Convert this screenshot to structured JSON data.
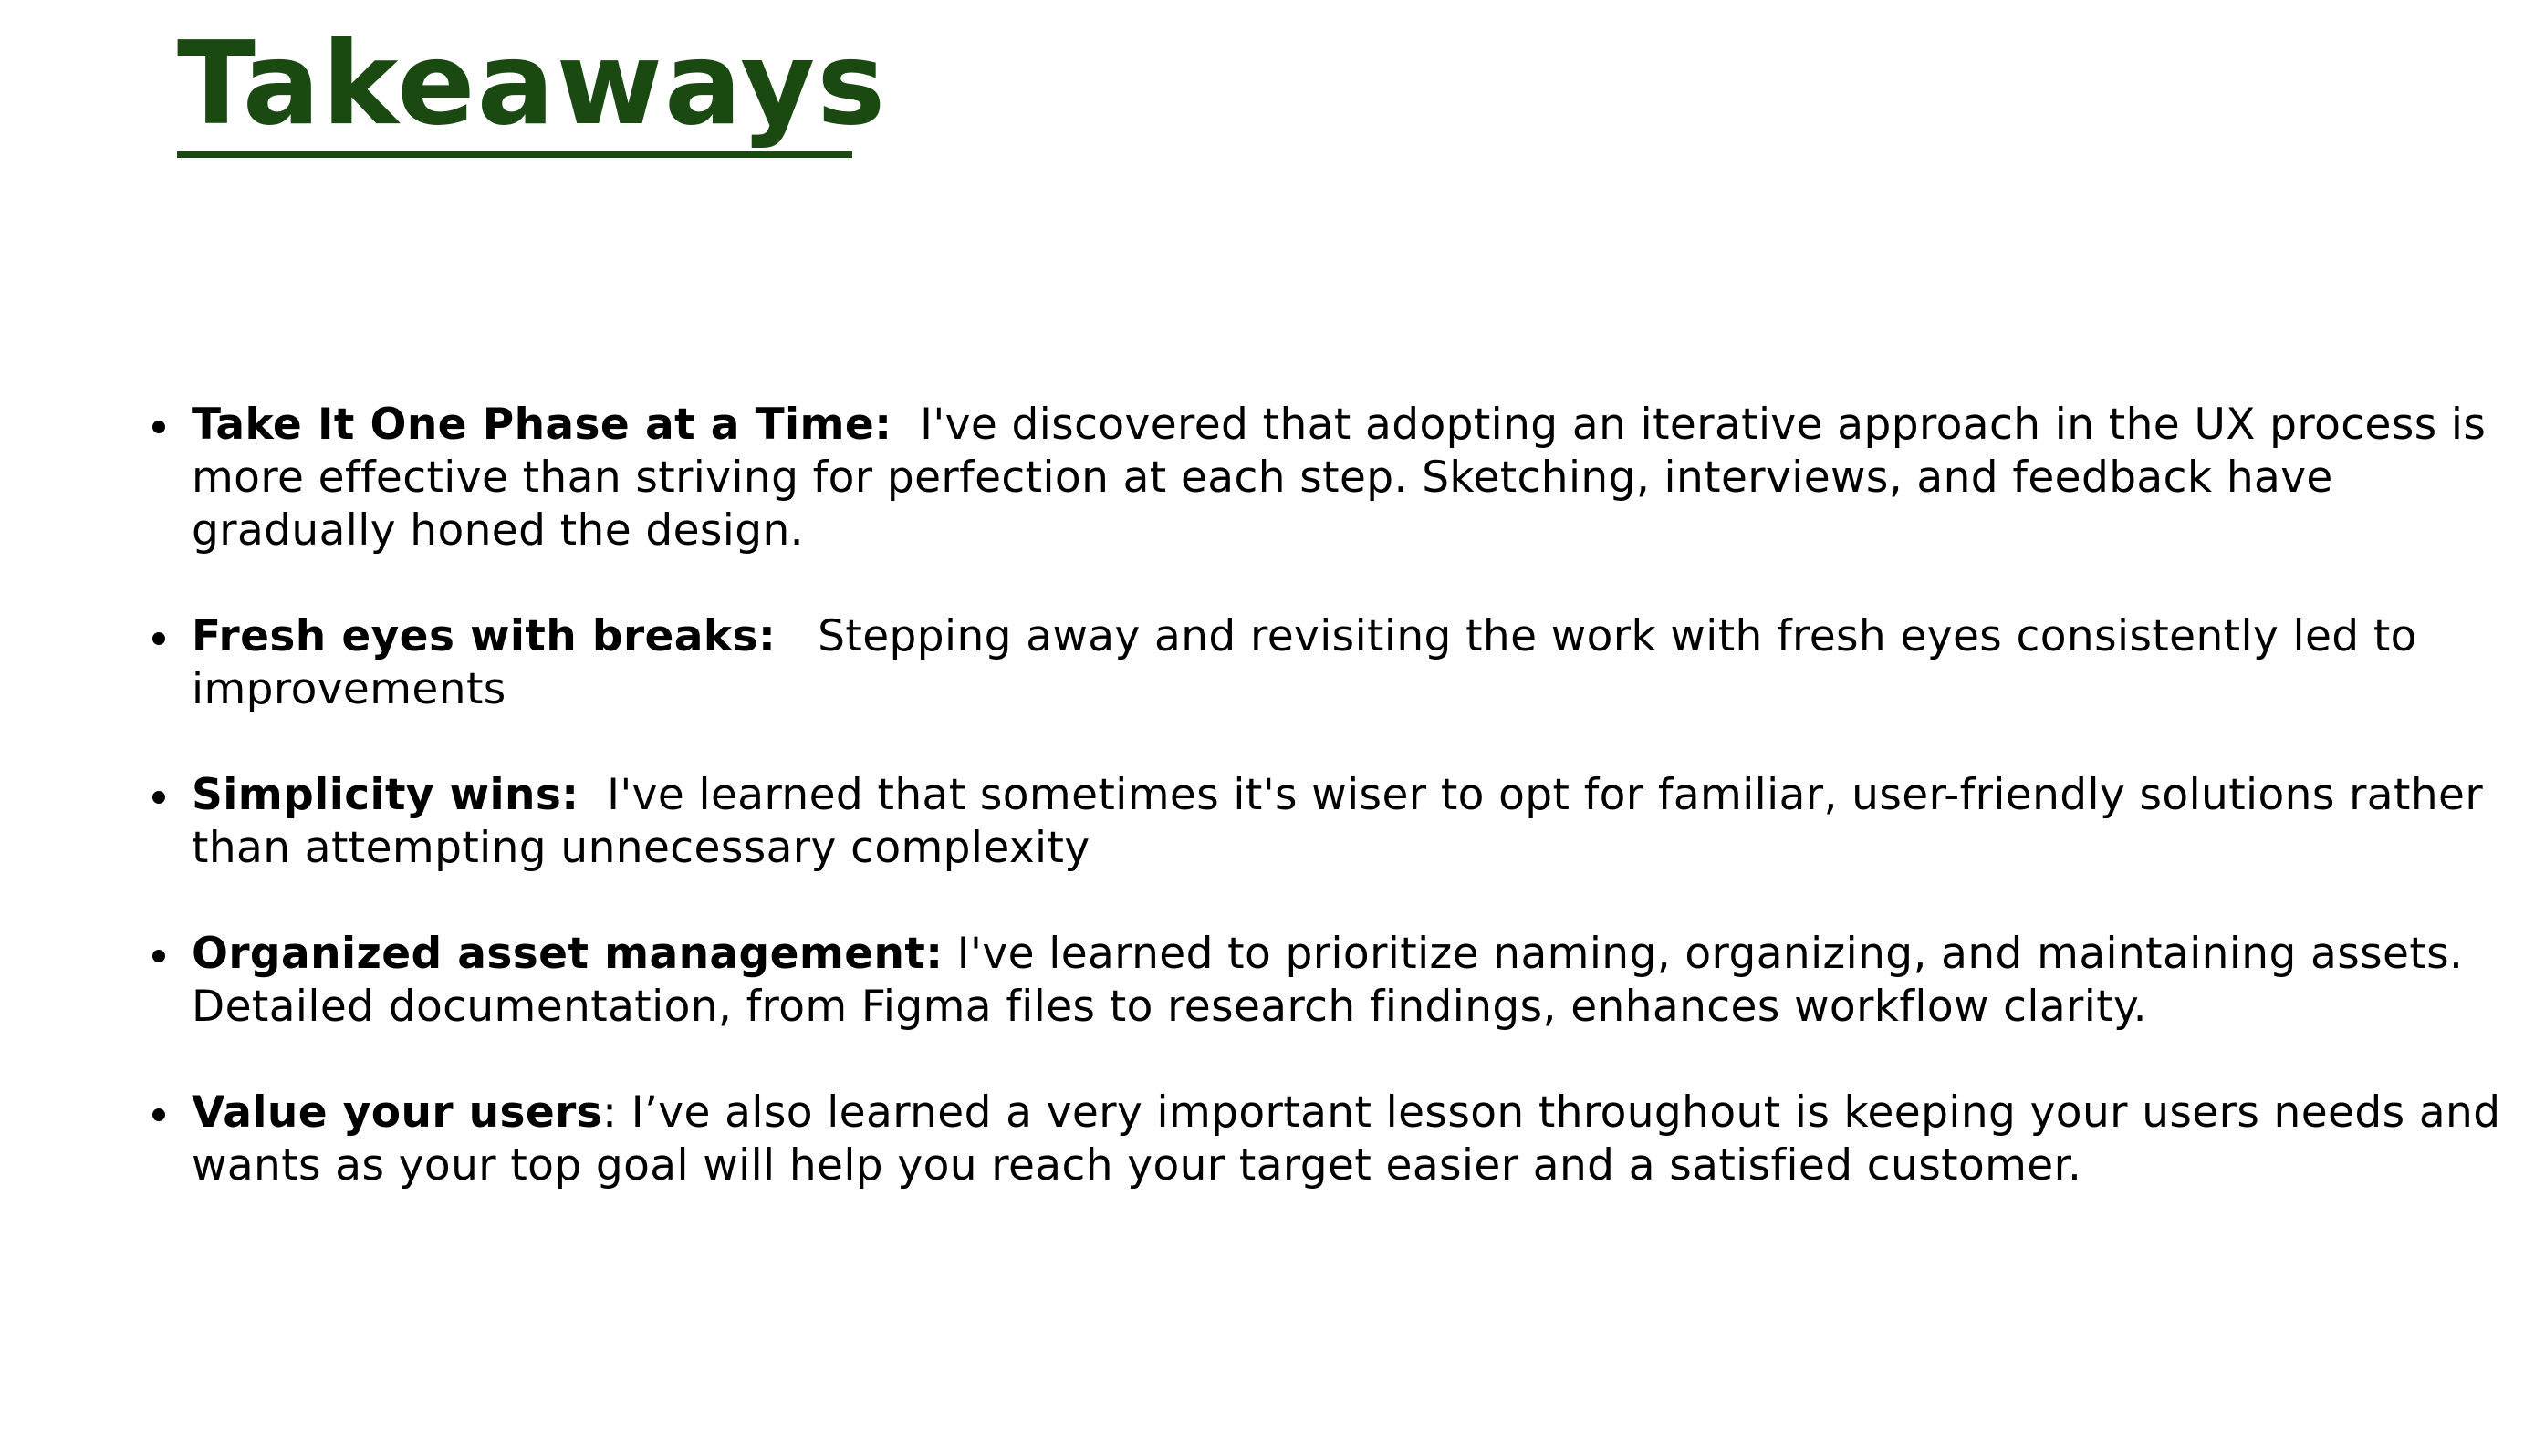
{
  "title": "Takeaways",
  "colors": {
    "title": "#1a4a12",
    "text": "#000000",
    "background": "#ffffff"
  },
  "takeaways": [
    {
      "heading": "Take It One Phase at a Time:",
      "text": "  I've discovered that adopting an iterative approach in the UX process is more effective than striving for perfection at each step. Sketching, interviews, and feedback have gradually honed the design."
    },
    {
      "heading": "Fresh eyes with breaks:",
      "text": "   Stepping away and revisiting the work with fresh eyes consistently led to improvements"
    },
    {
      "heading": "Simplicity wins:",
      "text": "  I've learned that sometimes it's wiser to opt for familiar, user-friendly solutions rather than attempting unnecessary complexity"
    },
    {
      "heading": "Organized asset management:",
      "text": " I've learned to prioritize naming, organizing, and maintaining assets. Detailed documentation, from Figma files to research findings, enhances workflow clarity."
    },
    {
      "heading": "Value your users",
      "text": ": I’ve also learned a very important lesson throughout is keeping your users needs and wants as your top goal will help you reach your target easier and a satisfied customer."
    }
  ]
}
